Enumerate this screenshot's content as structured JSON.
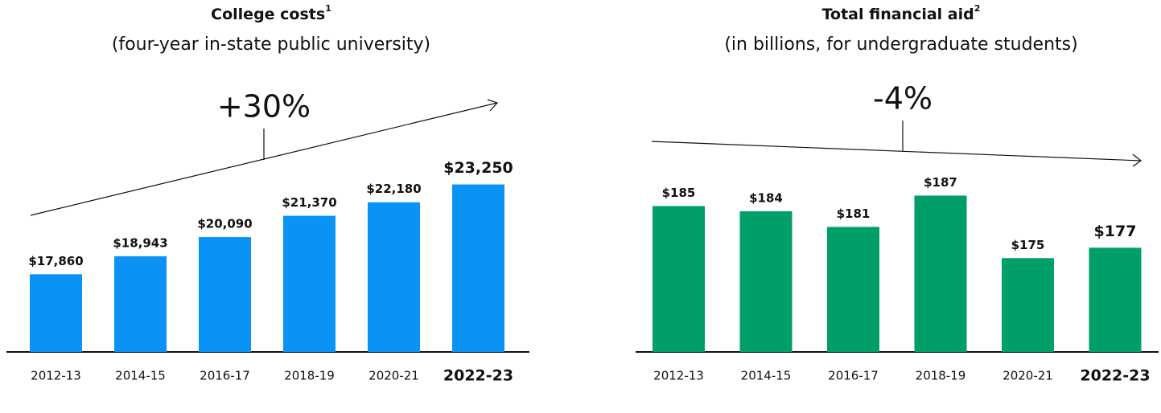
{
  "chart_data": [
    {
      "type": "bar",
      "title": "College costs",
      "title_superscript": "1",
      "subtitle": "(four-year in-state public university)",
      "annotation": "+30%",
      "categories": [
        "2012-13",
        "2014-15",
        "2016-17",
        "2018-19",
        "2020-21",
        "2022-23"
      ],
      "values": [
        17860,
        18943,
        20090,
        21370,
        22180,
        23250
      ],
      "value_labels": [
        "$17,860",
        "$18,943",
        "$20,090",
        "$21,370",
        "$22,180",
        "$23,250"
      ],
      "color": "#0a93f5",
      "ylim": [
        13200,
        24000
      ],
      "highlight_last": true
    },
    {
      "type": "bar",
      "title": "Total financial aid",
      "title_superscript": "2",
      "subtitle": "(in billions, for undergraduate students)",
      "annotation": "-4%",
      "categories": [
        "2012-13",
        "2014-15",
        "2016-17",
        "2018-19",
        "2020-21",
        "2022-23"
      ],
      "values": [
        185,
        184,
        181,
        187,
        175,
        177
      ],
      "value_labels": [
        "$185",
        "$184",
        "$181",
        "$187",
        "$175",
        "$177"
      ],
      "color": "#009e6b",
      "ylim": [
        157,
        190
      ],
      "highlight_last": true
    }
  ]
}
